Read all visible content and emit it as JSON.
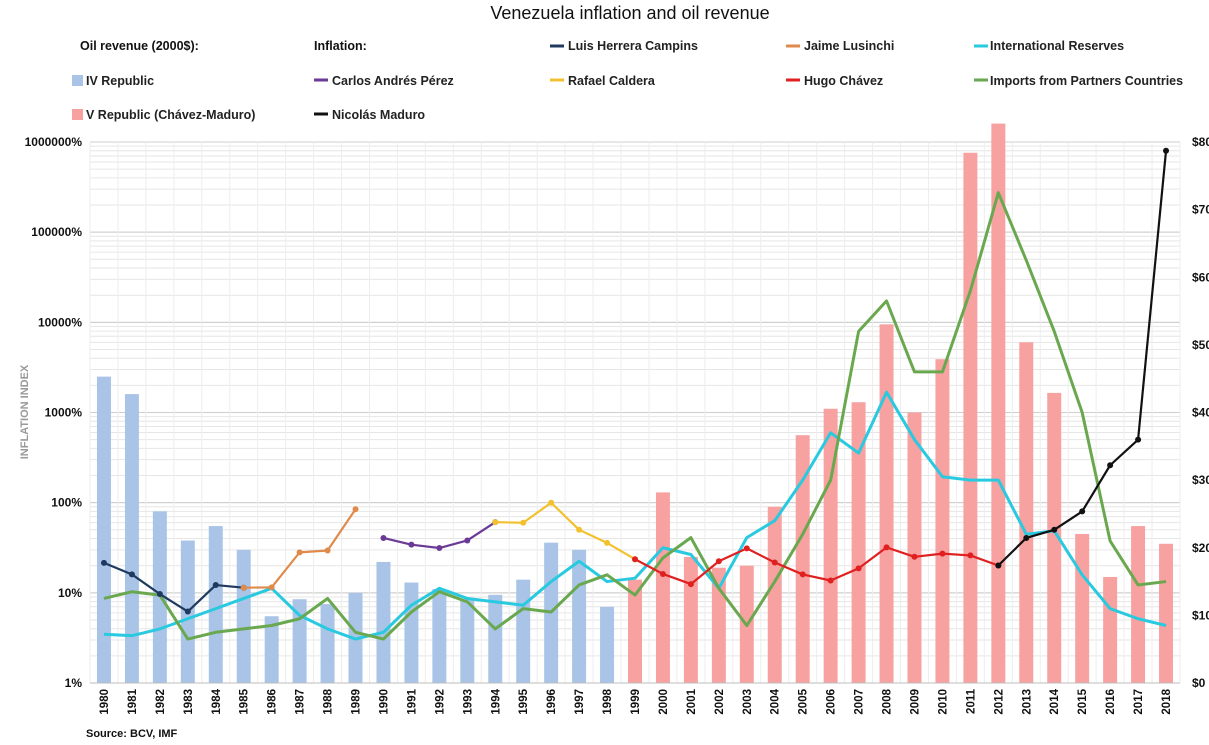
{
  "chart_data": {
    "type": "bar+line",
    "title": "Venezuela inflation and oil revenue",
    "ylabel": "INFLATION INDEX",
    "y_scale": "log",
    "ylim": [
      1,
      1000000
    ],
    "y_ticks": [
      "1%",
      "10%",
      "100%",
      "1000%",
      "10000%",
      "100000%",
      "1000000%"
    ],
    "y2lim": [
      0,
      80
    ],
    "y2_ticks": [
      "$0",
      "$10",
      "$20",
      "$30",
      "$40",
      "$50",
      "$60",
      "$70",
      "$80"
    ],
    "source": "Source: BCV,  IMF",
    "categories": [
      "1980",
      "1981",
      "1982",
      "1983",
      "1984",
      "1985",
      "1986",
      "1987",
      "1988",
      "1989",
      "1990",
      "1991",
      "1992",
      "1993",
      "1994",
      "1995",
      "1996",
      "1997",
      "1998",
      "1999",
      "2000",
      "2001",
      "2002",
      "2003",
      "2004",
      "2005",
      "2006",
      "2007",
      "2008",
      "2009",
      "2010",
      "2011",
      "2012",
      "2013",
      "2014",
      "2015",
      "2016",
      "2017",
      "2018"
    ],
    "legend_headers": {
      "oil": "Oil revenue (2000$):",
      "inflation": "Inflation:"
    },
    "bar_series": [
      {
        "name": "IV Republic",
        "color": "#a9c4e6",
        "values": {
          "1980": 2500,
          "1981": 1600,
          "1982": 80,
          "1983": 38,
          "1984": 55,
          "1985": 30,
          "1986": 5.5,
          "1987": 8.5,
          "1988": 7.5,
          "1989": 10,
          "1990": 22,
          "1991": 13,
          "1992": 11,
          "1993": 8.5,
          "1994": 9.5,
          "1995": 14,
          "1996": 36,
          "1997": 30,
          "1998": 7
        }
      },
      {
        "name": "V Republic (Chávez-Maduro)",
        "color": "#f7a1a1",
        "values": {
          "1999": 14,
          "2000": 130,
          "2001": 25,
          "2002": 19,
          "2003": 20,
          "2004": 90,
          "2005": 560,
          "2006": 1100,
          "2007": 1300,
          "2008": 9500,
          "2009": 1000,
          "2010": 3900,
          "2011": 760000,
          "2012": 1600000,
          "2013": 6000,
          "2014": 1650,
          "2015": 45,
          "2016": 15,
          "2017": 55,
          "2018": 35
        }
      }
    ],
    "inflation_series": [
      {
        "name": "Luis Herrera Campins",
        "color": "#1f3a5f",
        "x": [
          "1980",
          "1981",
          "1982",
          "1983",
          "1984",
          "1985"
        ],
        "values": [
          21.5,
          16,
          9.7,
          6.2,
          12.2,
          11.4
        ]
      },
      {
        "name": "Jaime Lusinchi",
        "color": "#e08a4c",
        "x": [
          "1985",
          "1986",
          "1987",
          "1988",
          "1989"
        ],
        "values": [
          11.4,
          11.5,
          28.1,
          29.5,
          84.5
        ]
      },
      {
        "name": "Carlos Andrés Pérez",
        "color": "#6b3a96",
        "x": [
          "1990",
          "1991",
          "1992",
          "1993",
          "1994"
        ],
        "values": [
          40.6,
          34.2,
          31.4,
          38.1,
          60.8
        ]
      },
      {
        "name": "Rafael Caldera",
        "color": "#f2c12e",
        "x": [
          "1994",
          "1995",
          "1996",
          "1997",
          "1998",
          "1999"
        ],
        "values": [
          60.8,
          59.9,
          99.9,
          50,
          35.8,
          23.6
        ]
      },
      {
        "name": "Hugo Chávez",
        "color": "#e02020",
        "x": [
          "1999",
          "2000",
          "2001",
          "2002",
          "2003",
          "2004",
          "2005",
          "2006",
          "2007",
          "2008",
          "2009",
          "2010",
          "2011",
          "2012"
        ],
        "values": [
          23.6,
          16.2,
          12.5,
          22.4,
          31.1,
          21.7,
          16,
          13.7,
          18.7,
          31.9,
          25.1,
          27.2,
          26,
          20.1
        ]
      },
      {
        "name": "Nicolás Maduro",
        "color": "#111111",
        "x": [
          "2012",
          "2013",
          "2014",
          "2015",
          "2016",
          "2017",
          "2018"
        ],
        "values": [
          20.1,
          40.6,
          50,
          80,
          260,
          500,
          800000
        ]
      }
    ],
    "dollar_series": [
      {
        "name": "International Reserves",
        "color": "#29c9e0",
        "x": [
          "1980",
          "1981",
          "1982",
          "1983",
          "1984",
          "1985",
          "1986",
          "1987",
          "1988",
          "1989",
          "1990",
          "1991",
          "1992",
          "1993",
          "1994",
          "1995",
          "1996",
          "1997",
          "1998",
          "1999",
          "2000",
          "2001",
          "2002",
          "2003",
          "2004",
          "2005",
          "2006",
          "2007",
          "2008",
          "2009",
          "2010",
          "2011",
          "2012",
          "2013",
          "2014",
          "2015",
          "2016",
          "2017",
          "2018"
        ],
        "values": [
          7.2,
          7,
          8,
          9.5,
          11,
          12.5,
          14,
          10,
          8,
          6.5,
          7.5,
          11.5,
          14,
          12.5,
          12,
          11.5,
          15,
          18,
          15,
          15.5,
          20,
          19,
          14,
          21.5,
          24,
          30,
          37,
          34,
          43,
          36,
          30.5,
          30,
          30,
          22,
          22.5,
          16,
          11,
          9.5,
          8.5
        ]
      },
      {
        "name": "Imports from Partners Countries",
        "color": "#6aa84f",
        "x": [
          "1980",
          "1981",
          "1982",
          "1983",
          "1984",
          "1985",
          "1986",
          "1987",
          "1988",
          "1989",
          "1990",
          "1991",
          "1992",
          "1993",
          "1994",
          "1995",
          "1996",
          "1997",
          "1998",
          "1999",
          "2000",
          "2001",
          "2002",
          "2003",
          "2004",
          "2005",
          "2006",
          "2007",
          "2008",
          "2009",
          "2010",
          "2011",
          "2012",
          "2013",
          "2014",
          "2015",
          "2016",
          "2017",
          "2018"
        ],
        "values": [
          12.5,
          13.5,
          13,
          6.5,
          7.5,
          8,
          8.5,
          9.5,
          12.5,
          7.5,
          6.5,
          10.5,
          13.5,
          12,
          8,
          11,
          10.5,
          14.5,
          16,
          13,
          18.5,
          21.5,
          14,
          8.5,
          15,
          22,
          30,
          52,
          56.5,
          46,
          46,
          58,
          72.5,
          62.5,
          52,
          40,
          21,
          14.5,
          15
        ]
      }
    ]
  }
}
